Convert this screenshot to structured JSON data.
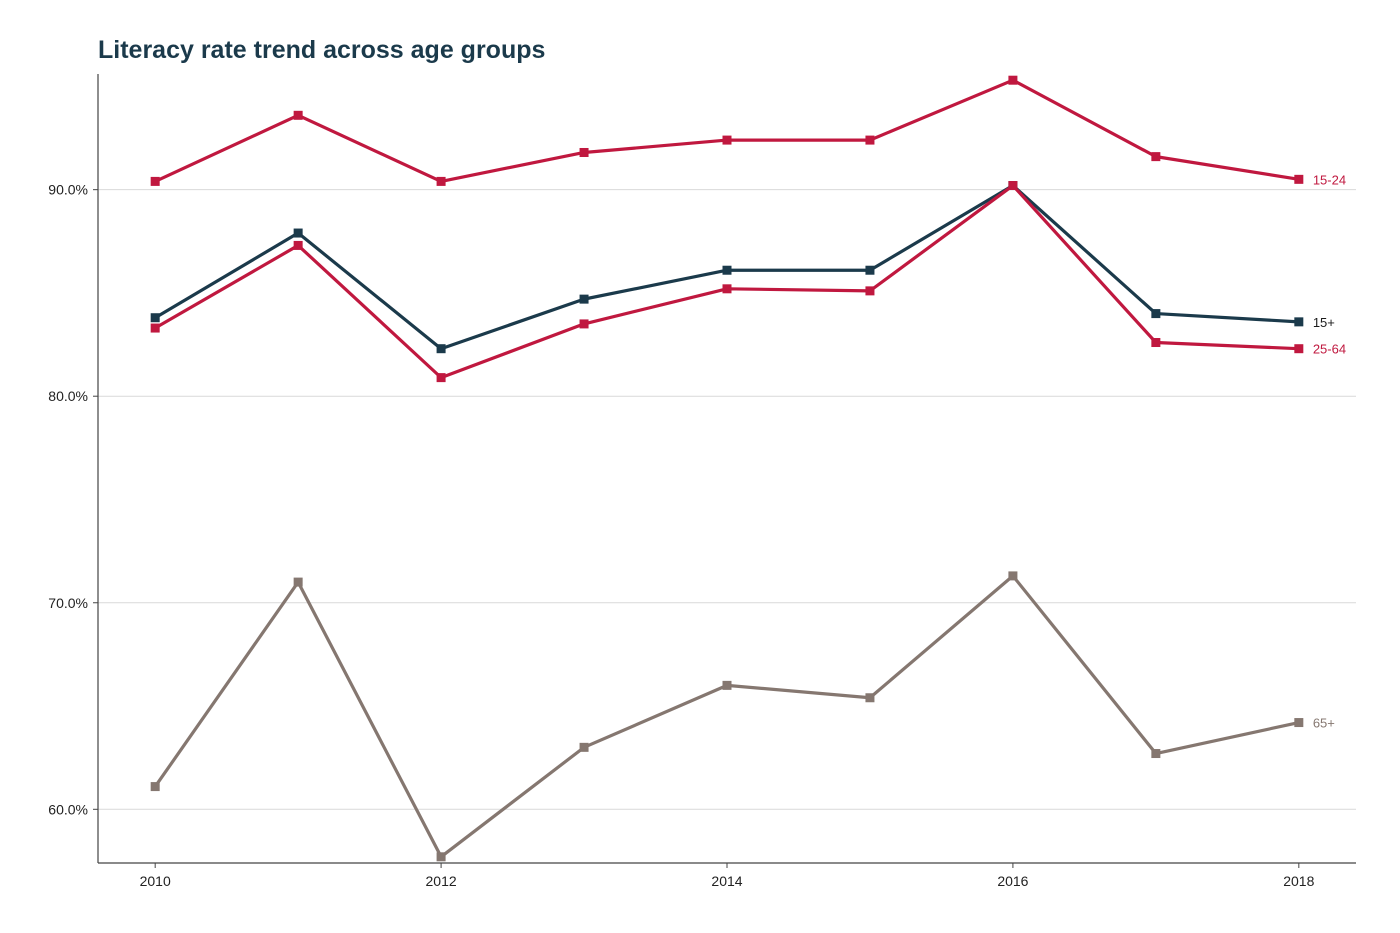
{
  "chart_data": {
    "type": "line",
    "title": "Literacy rate trend across age groups",
    "xlabel": "",
    "ylabel": "",
    "x": [
      2010,
      2011,
      2012,
      2013,
      2014,
      2015,
      2016,
      2017,
      2018
    ],
    "x_tick_values": [
      2010,
      2012,
      2014,
      2016,
      2018
    ],
    "x_tick_labels": [
      "2010",
      "2012",
      "2014",
      "2016",
      "2018"
    ],
    "y_tick_values": [
      60,
      70,
      80,
      90
    ],
    "y_tick_labels": [
      "60.0%",
      "70.0%",
      "80.0%",
      "90.0%"
    ],
    "xlim": [
      2009.6,
      2018.4
    ],
    "ylim": [
      57.4,
      95.6
    ],
    "grid": "horizontal",
    "legend": "direct labels at line ends",
    "series": [
      {
        "name": "15-24",
        "color": "#c0183f",
        "values": [
          90.4,
          93.6,
          90.4,
          91.8,
          92.4,
          92.4,
          95.3,
          91.6,
          90.5
        ]
      },
      {
        "name": "15+",
        "color": "#1b3a4b",
        "values": [
          83.8,
          87.9,
          82.3,
          84.7,
          86.1,
          86.1,
          90.2,
          84.0,
          83.6
        ]
      },
      {
        "name": "25-64",
        "color": "#c0183f",
        "values": [
          83.3,
          87.3,
          80.9,
          83.5,
          85.2,
          85.1,
          90.2,
          82.6,
          82.3
        ]
      },
      {
        "name": "65+",
        "color": "#857770",
        "values": [
          61.1,
          71.0,
          57.7,
          63.0,
          66.0,
          65.4,
          71.3,
          62.7,
          64.2
        ]
      }
    ]
  }
}
